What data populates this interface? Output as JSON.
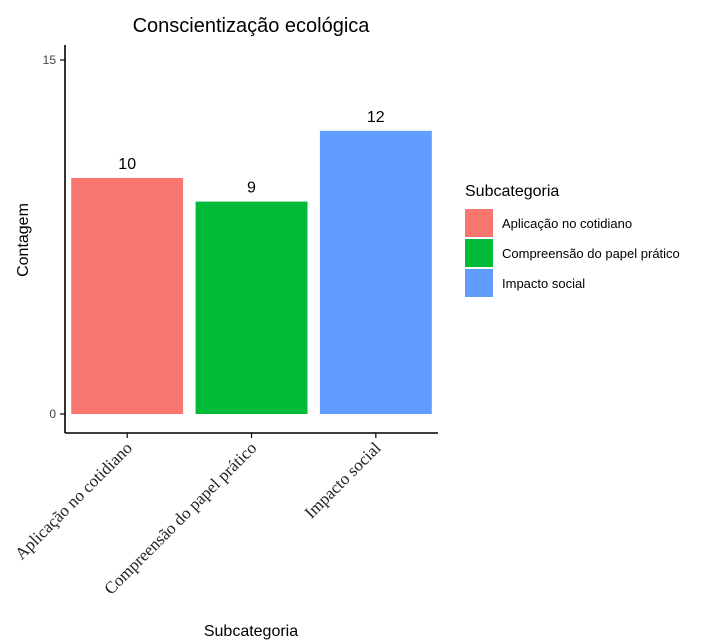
{
  "chart_data": {
    "type": "bar",
    "title": "Conscientização ecológica",
    "xlabel": "Subcategoria",
    "ylabel": "Contagem",
    "categories": [
      "Aplicação no cotidiano",
      "Compreensão do papel prático",
      "Impacto social"
    ],
    "values": [
      10,
      9,
      12
    ],
    "colors": [
      "#F8766D",
      "#00BA38",
      "#619CFF"
    ],
    "ylim": [
      0,
      15
    ],
    "yticks": [
      0,
      15
    ],
    "grid": false,
    "legend": {
      "title": "Subcategoria",
      "position": "right",
      "entries": [
        "Aplicação no cotidiano",
        "Compreensão do papel prático",
        "Impacto social"
      ]
    }
  }
}
